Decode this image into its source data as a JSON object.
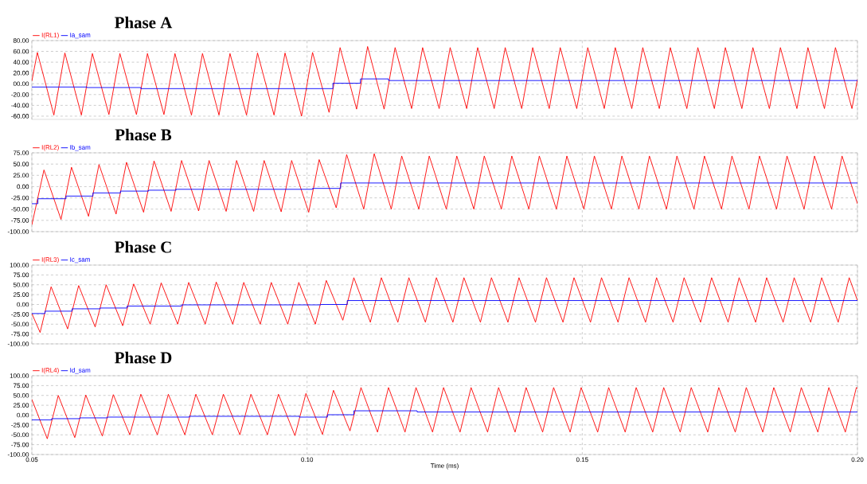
{
  "chart_data": [
    {
      "type": "line",
      "title": "Phase A",
      "grid": true,
      "legend": "top left",
      "tick_labels": "y",
      "xlim": [
        0.05,
        0.2
      ],
      "xticks": [
        0.05,
        0.1,
        0.15,
        0.2
      ],
      "ylim": [
        -66,
        80
      ],
      "yticks": [
        {
          "value": 80,
          "label": "80.00"
        },
        {
          "value": 60,
          "label": "60.00"
        },
        {
          "value": 40,
          "label": "40.00"
        },
        {
          "value": 20,
          "label": "20.00"
        },
        {
          "value": 0,
          "label": "00.00"
        },
        {
          "value": -20,
          "label": "-20.00"
        },
        {
          "value": -40,
          "label": "-40.00"
        },
        {
          "value": -60,
          "label": "-60.00"
        }
      ],
      "series": [
        {
          "name": "I(RL1)",
          "color": "#ff0000",
          "x": [
            0.05,
            0.051,
            0.054,
            0.056,
            0.059,
            0.061,
            0.064,
            0.066,
            0.069,
            0.071,
            0.074,
            0.076,
            0.079,
            0.081,
            0.084,
            0.086,
            0.089,
            0.091,
            0.094,
            0.096,
            0.099,
            0.101,
            0.104,
            0.106,
            0.109,
            0.111,
            0.114,
            0.116,
            0.119,
            0.121,
            0.124,
            0.126,
            0.129,
            0.131,
            0.134,
            0.136,
            0.139,
            0.141,
            0.144,
            0.146,
            0.149,
            0.151,
            0.154,
            0.156,
            0.159,
            0.161,
            0.164,
            0.166,
            0.169,
            0.171,
            0.174,
            0.176,
            0.179,
            0.181,
            0.184,
            0.186,
            0.189,
            0.191,
            0.194,
            0.196,
            0.199,
            0.2
          ],
          "values": [
            5,
            58,
            -58,
            57,
            -58,
            56,
            -57,
            56,
            -57,
            56,
            -57,
            56,
            -58,
            56,
            -58,
            56,
            -58,
            57,
            -58,
            57,
            -60,
            58,
            -53,
            67,
            -47,
            69,
            -47,
            67,
            -46,
            67,
            -46,
            67,
            -46,
            67,
            -46,
            67,
            -46,
            67,
            -46,
            67,
            -46,
            67,
            -46,
            67,
            -46,
            67,
            -46,
            67,
            -46,
            67,
            -46,
            67,
            -46,
            67,
            -46,
            67,
            -46,
            67,
            -46,
            67,
            -46,
            8
          ]
        },
        {
          "name": "Ia_sam",
          "color": "#0000ff",
          "type": "step",
          "x": [
            0.05,
            0.06,
            0.0698,
            0.1047,
            0.1097,
            0.1148,
            0.2
          ],
          "values": [
            -6,
            -7,
            -9,
            1,
            9,
            6,
            6
          ]
        }
      ]
    },
    {
      "type": "line",
      "title": "Phase B",
      "grid": true,
      "legend": "top left",
      "tick_labels": "y",
      "xlim": [
        0.05,
        0.2
      ],
      "xticks": [
        0.05,
        0.1,
        0.15,
        0.2
      ],
      "ylim": [
        -100,
        75
      ],
      "yticks": [
        {
          "value": 75,
          "label": "75.00"
        },
        {
          "value": 50,
          "label": "50.00"
        },
        {
          "value": 25,
          "label": "25.00"
        },
        {
          "value": 0,
          "label": "0.00"
        },
        {
          "value": -25,
          "label": "-25.00"
        },
        {
          "value": -50,
          "label": "-50.00"
        },
        {
          "value": -75,
          "label": "-75.00"
        },
        {
          "value": -100,
          "label": "-100.00"
        }
      ],
      "series": [
        {
          "name": "I(RL2)",
          "color": "#ff0000",
          "x": [
            0.05,
            0.0522,
            0.0553,
            0.0572,
            0.0603,
            0.0622,
            0.0653,
            0.0672,
            0.0703,
            0.0722,
            0.0753,
            0.0772,
            0.0803,
            0.0822,
            0.0853,
            0.0872,
            0.0903,
            0.0922,
            0.0953,
            0.0972,
            0.1003,
            0.1022,
            0.1053,
            0.1072,
            0.1103,
            0.1122,
            0.1153,
            0.1172,
            0.1203,
            0.1222,
            0.1253,
            0.1272,
            0.1303,
            0.1322,
            0.1353,
            0.1372,
            0.1403,
            0.1422,
            0.1453,
            0.1472,
            0.1503,
            0.1522,
            0.1553,
            0.1572,
            0.1603,
            0.1622,
            0.1653,
            0.1672,
            0.1703,
            0.1722,
            0.1753,
            0.1772,
            0.1803,
            0.1822,
            0.1853,
            0.1872,
            0.1903,
            0.1922,
            0.1953,
            0.1972,
            0.2
          ],
          "values": [
            -85,
            37,
            -73,
            43,
            -66,
            49,
            -61,
            54,
            -57,
            57,
            -55,
            58,
            -54,
            58,
            -55,
            58,
            -55,
            58,
            -56,
            58,
            -57,
            60,
            -47,
            71,
            -50,
            73,
            -50,
            68,
            -50,
            68,
            -50,
            68,
            -50,
            68,
            -50,
            68,
            -50,
            68,
            -50,
            68,
            -50,
            68,
            -50,
            68,
            -50,
            68,
            -50,
            68,
            -50,
            68,
            -50,
            68,
            -50,
            68,
            -50,
            68,
            -50,
            68,
            -50,
            68,
            -38
          ]
        },
        {
          "name": "Ib_sam",
          "color": "#0000ff",
          "type": "step",
          "x": [
            0.05,
            0.0511,
            0.0562,
            0.0611,
            0.0661,
            0.0712,
            0.0762,
            0.101,
            0.1061,
            0.2
          ],
          "values": [
            -38,
            -27,
            -21,
            -14,
            -10,
            -8,
            -6,
            -4,
            8,
            8
          ]
        }
      ]
    },
    {
      "type": "line",
      "title": "Phase C",
      "grid": true,
      "legend": "top left",
      "tick_labels": "y",
      "xlim": [
        0.05,
        0.2
      ],
      "xticks": [
        0.05,
        0.1,
        0.15,
        0.2
      ],
      "ylim": [
        -100,
        100
      ],
      "yticks": [
        {
          "value": 100,
          "label": "100.00"
        },
        {
          "value": 75,
          "label": "75.00"
        },
        {
          "value": 50,
          "label": "50.00"
        },
        {
          "value": 25,
          "label": "25.00"
        },
        {
          "value": 0,
          "label": "0.00"
        },
        {
          "value": -25,
          "label": "-25.00"
        },
        {
          "value": -50,
          "label": "-50.00"
        },
        {
          "value": -75,
          "label": "-75.00"
        },
        {
          "value": -100,
          "label": "-100.00"
        }
      ],
      "series": [
        {
          "name": "I(RL3)",
          "color": "#ff0000",
          "x": [
            0.05,
            0.0515,
            0.0535,
            0.0565,
            0.0585,
            0.0615,
            0.0635,
            0.0665,
            0.0685,
            0.0715,
            0.0735,
            0.0765,
            0.0785,
            0.0815,
            0.0835,
            0.0865,
            0.0885,
            0.0915,
            0.0935,
            0.0965,
            0.0985,
            0.1015,
            0.1035,
            0.1065,
            0.1085,
            0.1115,
            0.1135,
            0.1165,
            0.1185,
            0.1215,
            0.1235,
            0.1265,
            0.1285,
            0.1315,
            0.1335,
            0.1365,
            0.1385,
            0.1415,
            0.1435,
            0.1465,
            0.1485,
            0.1515,
            0.1535,
            0.1565,
            0.1585,
            0.1615,
            0.1635,
            0.1665,
            0.1685,
            0.1715,
            0.1735,
            0.1765,
            0.1785,
            0.1815,
            0.1835,
            0.1865,
            0.1885,
            0.1915,
            0.1935,
            0.1965,
            0.1985,
            0.2
          ],
          "values": [
            -23,
            -71,
            45,
            -62,
            48,
            -57,
            50,
            -54,
            52,
            -50,
            55,
            -50,
            56,
            -50,
            57,
            -50,
            56,
            -50,
            56,
            -50,
            56,
            -50,
            61,
            -40,
            68,
            -45,
            68,
            -45,
            68,
            -45,
            68,
            -45,
            68,
            -45,
            68,
            -45,
            68,
            -45,
            68,
            -45,
            68,
            -45,
            68,
            -45,
            68,
            -45,
            68,
            -45,
            68,
            -45,
            68,
            -45,
            68,
            -45,
            68,
            -45,
            68,
            -45,
            68,
            -45,
            68,
            10
          ]
        },
        {
          "name": "Ic_sam",
          "color": "#0000ff",
          "type": "step",
          "x": [
            0.05,
            0.0524,
            0.0573,
            0.0624,
            0.0673,
            0.0772,
            0.1025,
            0.1073,
            0.2
          ],
          "values": [
            -23,
            -17,
            -11,
            -9,
            -4,
            -1,
            0,
            10,
            10
          ]
        }
      ]
    },
    {
      "type": "line",
      "title": "Phase D",
      "xlabel": "Time (ms)",
      "grid": true,
      "legend": "top left",
      "xlim": [
        0.05,
        0.2
      ],
      "xticks": [
        {
          "value": 0.05,
          "label": "0.05"
        },
        {
          "value": 0.1,
          "label": "0.10"
        },
        {
          "value": 0.15,
          "label": "0.15"
        },
        {
          "value": 0.2,
          "label": "0.20"
        }
      ],
      "ylim": [
        -100,
        100
      ],
      "yticks": [
        {
          "value": 100,
          "label": "100.00"
        },
        {
          "value": 75,
          "label": "75.00"
        },
        {
          "value": 50,
          "label": "50.00"
        },
        {
          "value": 25,
          "label": "25.00"
        },
        {
          "value": 0,
          "label": "0.00"
        },
        {
          "value": -25,
          "label": "-25.00"
        },
        {
          "value": -50,
          "label": "-50.00"
        },
        {
          "value": -75,
          "label": "-75.00"
        },
        {
          "value": -100,
          "label": "-100.00"
        }
      ],
      "series": [
        {
          "name": "I(RL4)",
          "color": "#ff0000",
          "x": [
            0.05,
            0.0528,
            0.0548,
            0.0578,
            0.0598,
            0.0628,
            0.0648,
            0.0678,
            0.0698,
            0.0728,
            0.0748,
            0.0778,
            0.0798,
            0.0828,
            0.0848,
            0.0878,
            0.0898,
            0.0928,
            0.0948,
            0.0978,
            0.0998,
            0.1028,
            0.1048,
            0.1078,
            0.1098,
            0.1128,
            0.1148,
            0.1178,
            0.1198,
            0.1228,
            0.1248,
            0.1278,
            0.1298,
            0.1328,
            0.1348,
            0.1378,
            0.1398,
            0.1428,
            0.1448,
            0.1478,
            0.1498,
            0.1528,
            0.1548,
            0.1578,
            0.1598,
            0.1628,
            0.1648,
            0.1678,
            0.1698,
            0.1728,
            0.1748,
            0.1778,
            0.1798,
            0.1828,
            0.1848,
            0.1878,
            0.1898,
            0.1928,
            0.1948,
            0.1978,
            0.1998,
            0.2
          ],
          "values": [
            40,
            -60,
            50,
            -57,
            51,
            -53,
            52,
            -50,
            53,
            -50,
            53,
            -50,
            53,
            -50,
            53,
            -50,
            53,
            -50,
            53,
            -52,
            55,
            -49,
            63,
            -40,
            70,
            -43,
            70,
            -43,
            70,
            -43,
            70,
            -43,
            70,
            -43,
            70,
            -43,
            70,
            -43,
            70,
            -43,
            70,
            -43,
            70,
            -43,
            70,
            -43,
            70,
            -43,
            70,
            -43,
            70,
            -43,
            70,
            -43,
            70,
            -43,
            70,
            -43,
            70,
            -43,
            70,
            68
          ]
        },
        {
          "name": "Id_sam",
          "color": "#0000ff",
          "type": "step",
          "x": [
            0.05,
            0.0536,
            0.0587,
            0.0637,
            0.0786,
            0.0986,
            0.1037,
            0.1085,
            0.12,
            0.2
          ],
          "values": [
            -12,
            -9,
            -7,
            -5,
            -3,
            -5,
            1,
            11,
            8,
            8
          ]
        }
      ]
    }
  ]
}
